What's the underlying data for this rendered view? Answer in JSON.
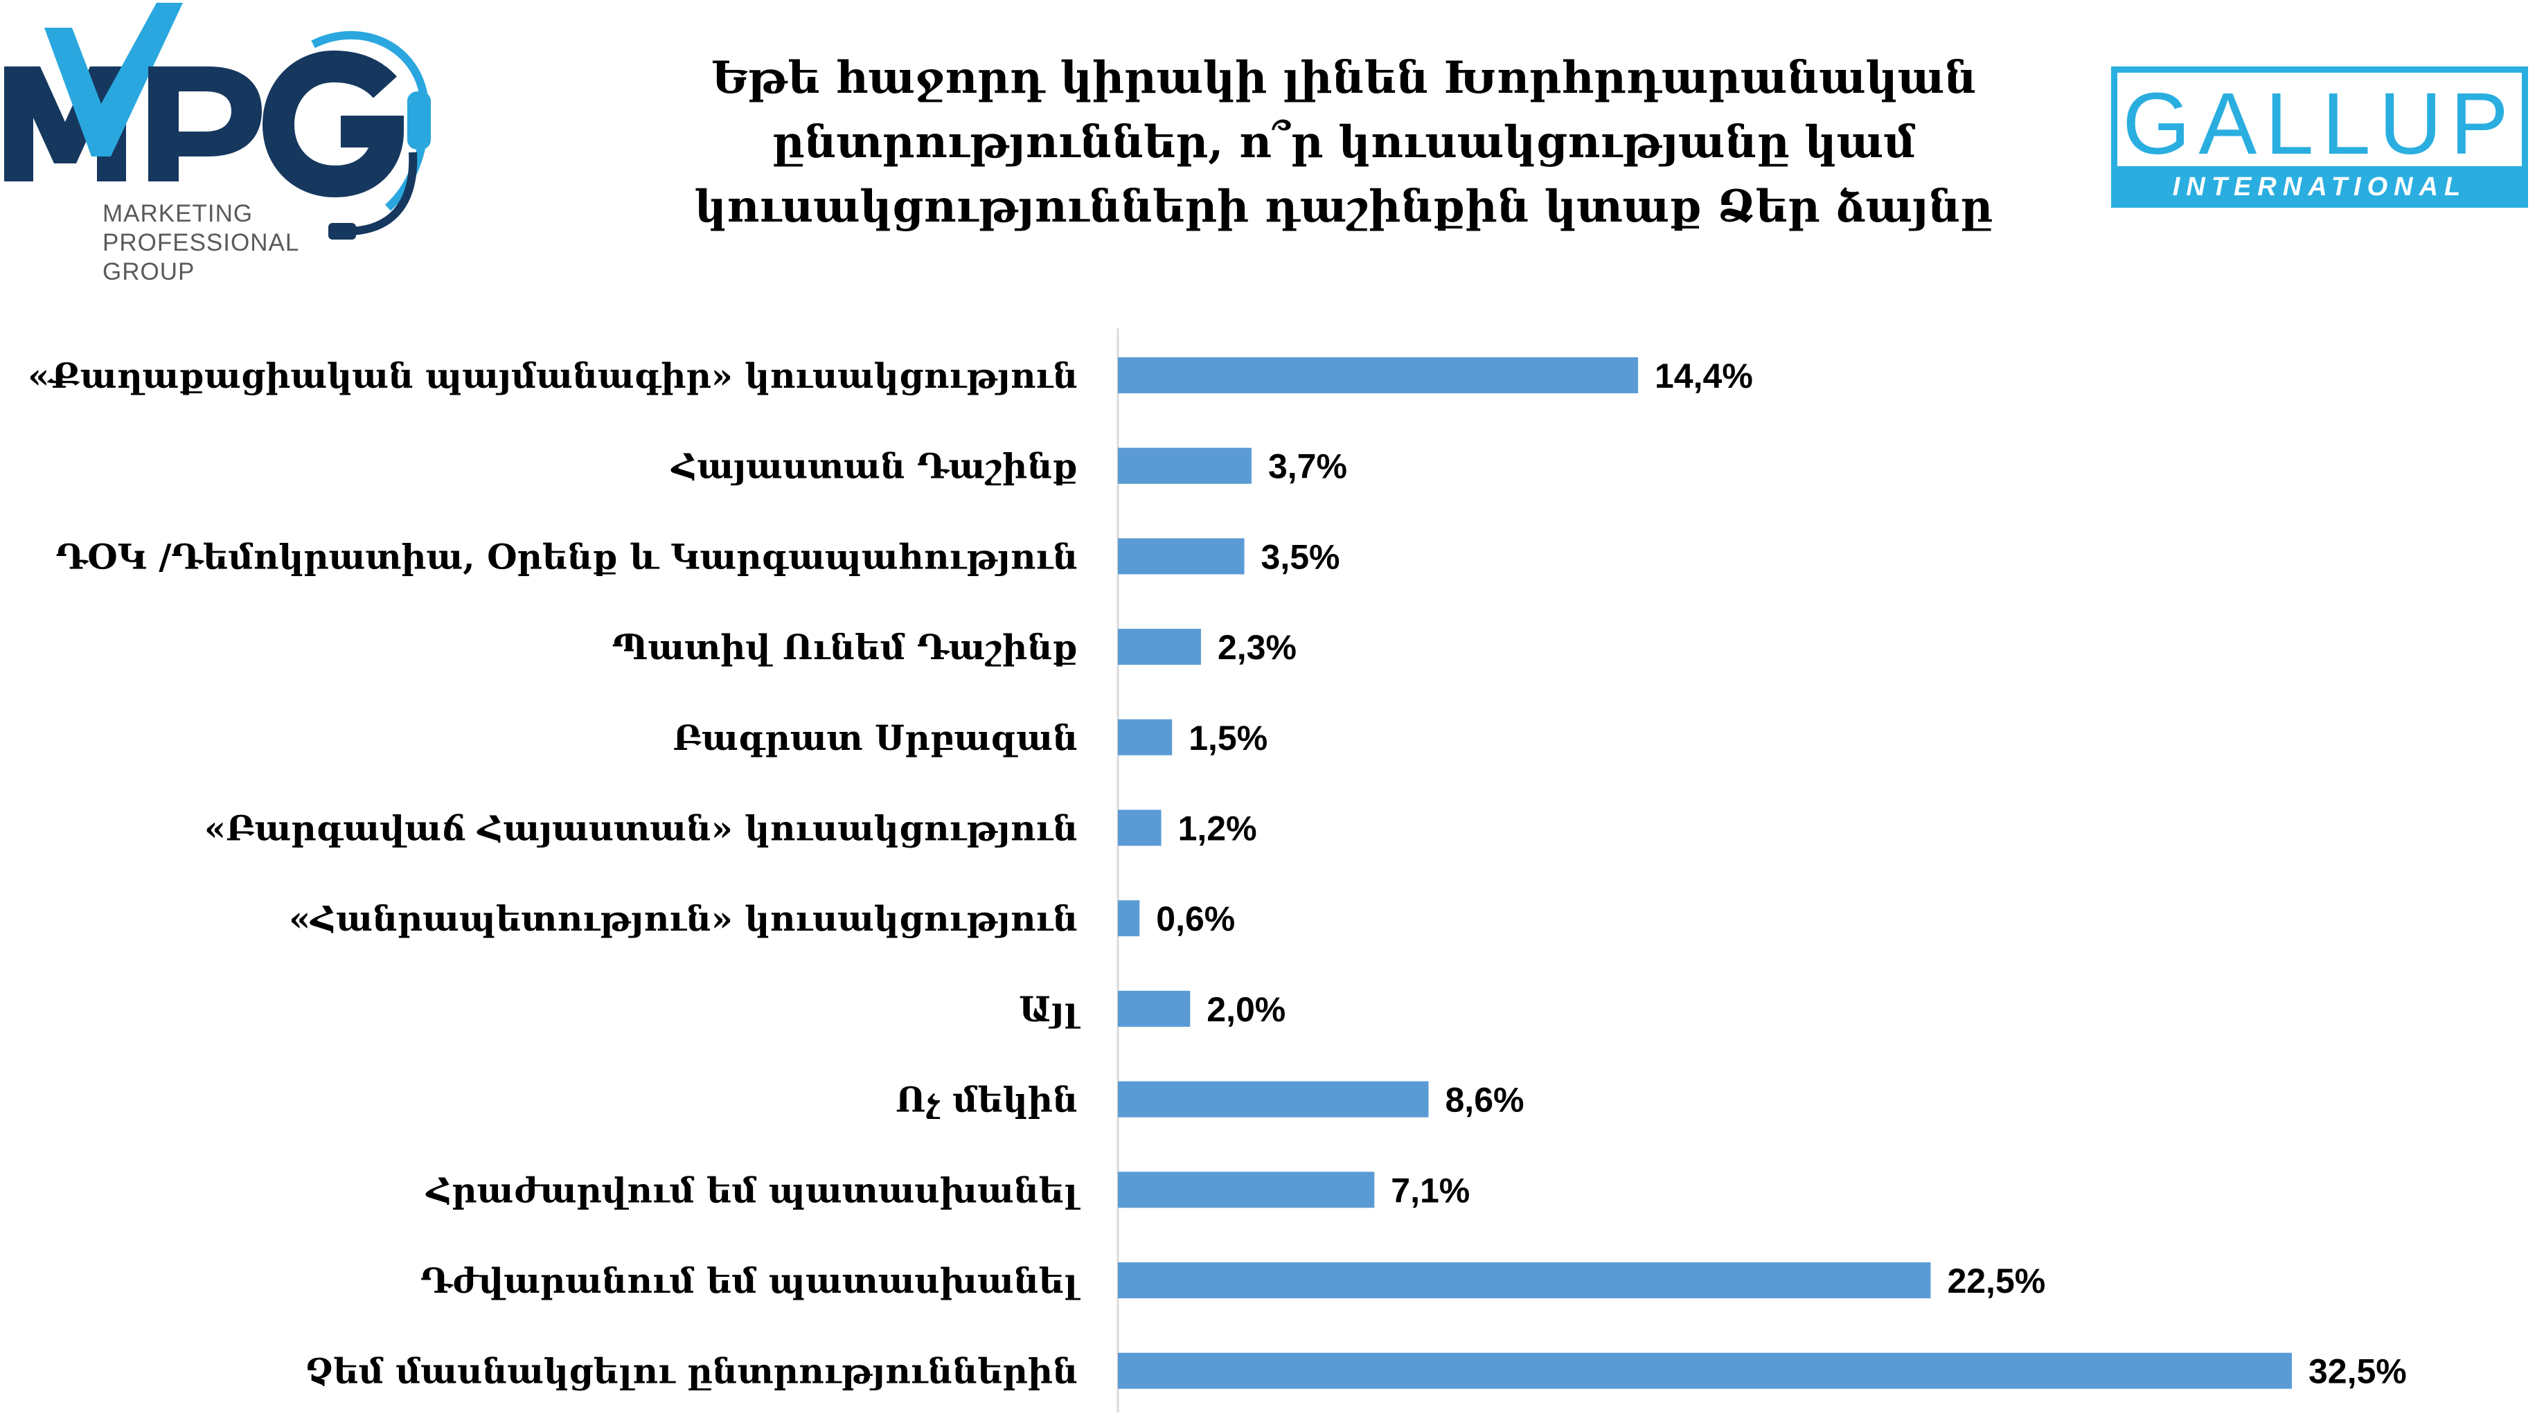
{
  "header": {
    "title_lines": [
      "Եթե հաջորդ կիրակի լինեն Խորհրդարանական",
      "ընտրություններ, ո՞ր կուսակցությանը կամ",
      "կուսակցությունների դաշինքին կտաք Ձեր ձայնը"
    ]
  },
  "logos": {
    "mpg": {
      "letters": "MPG",
      "lines": [
        "MARKETING",
        "PROFESSIONAL",
        "GROUP"
      ],
      "colors": {
        "navy": "#16385f",
        "blue": "#2aa7df"
      }
    },
    "gallup": {
      "word": "GALLUP",
      "sub": "INTERNATIONAL",
      "color": "#2aaee0"
    }
  },
  "chart_data": {
    "type": "bar",
    "orientation": "horizontal",
    "title": "Եթե հաջորդ կիրակի լինեն Խորհրդարանական ընտրություններ, ո՞ր կուսակցությանը կամ կուսակցությունների դաշինքին կտաք Ձեր ձայնը",
    "categories": [
      "«Քաղաքացիական պայմանագիր» կուսակցություն",
      "Հայաստան Դաշինք",
      "ԴՕԿ /Դեմոկրատիա, Օրենք և Կարգապահություն",
      "Պատիվ Ունեմ Դաշինք",
      "Բագրատ Սրբազան",
      "«Բարգավաճ Հայաստան»  կուսակցություն",
      "«Հանրապետություն»  կուսակցություն",
      "Այլ",
      "Ոչ մեկին",
      "Հրաժարվում եմ պատասխանել",
      "Դժվարանում եմ պատասխանել",
      "Չեմ մասնակցելու ընտրություններին"
    ],
    "values": [
      14.4,
      3.7,
      3.5,
      2.3,
      1.5,
      1.2,
      0.6,
      2.0,
      8.6,
      7.1,
      22.5,
      32.5
    ],
    "value_labels": [
      "14,4%",
      "3,7%",
      "3,5%",
      "2,3%",
      "1,5%",
      "1,2%",
      "0,6%",
      "2,0%",
      "8,6%",
      "7,1%",
      "22,5%",
      "32,5%"
    ],
    "unit": "%",
    "xlim": [
      0,
      33
    ],
    "bar_color": "#5b9bd5",
    "grid": false,
    "legend": "none"
  }
}
